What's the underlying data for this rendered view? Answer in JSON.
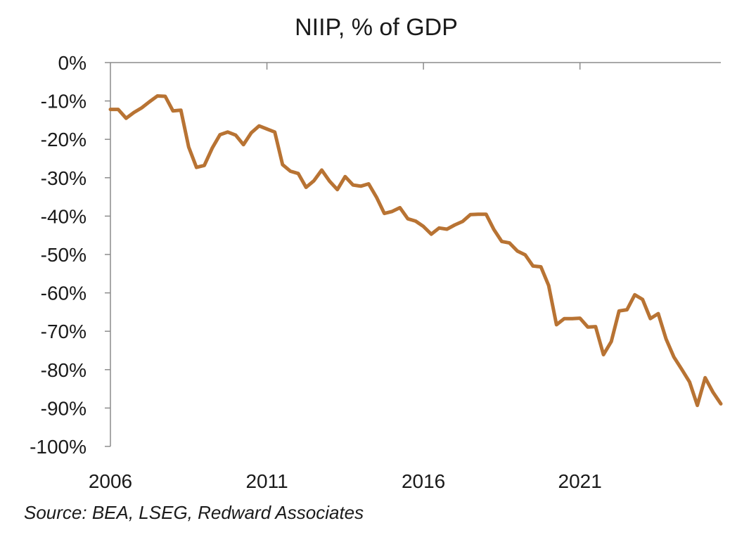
{
  "chart_data": {
    "type": "line",
    "title": "NIIP, % of GDP",
    "xlabel": "",
    "ylabel": "",
    "xlim": [
      2006,
      2025.5
    ],
    "ylim": [
      -100,
      0
    ],
    "y_ticks": [
      0,
      -10,
      -20,
      -30,
      -40,
      -50,
      -60,
      -70,
      -80,
      -90,
      -100
    ],
    "y_tick_labels": [
      "0%",
      "-10%",
      "-20%",
      "-30%",
      "-40%",
      "-50%",
      "-60%",
      "-70%",
      "-80%",
      "-90%",
      "-100%"
    ],
    "x_ticks": [
      2006,
      2011,
      2016,
      2021
    ],
    "x_tick_labels": [
      "2006",
      "2011",
      "2016",
      "2021"
    ],
    "grid": false,
    "line_color": "#B87333",
    "series": [
      {
        "name": "NIIP, % of GDP",
        "x": [
          2006.0,
          2006.25,
          2006.5,
          2006.75,
          2007.0,
          2007.25,
          2007.5,
          2007.75,
          2008.0,
          2008.25,
          2008.5,
          2008.75,
          2009.0,
          2009.25,
          2009.5,
          2009.75,
          2010.0,
          2010.25,
          2010.5,
          2010.75,
          2011.0,
          2011.25,
          2011.5,
          2011.75,
          2012.0,
          2012.25,
          2012.5,
          2012.75,
          2013.0,
          2013.25,
          2013.5,
          2013.75,
          2014.0,
          2014.25,
          2014.5,
          2014.75,
          2015.0,
          2015.25,
          2015.5,
          2015.75,
          2016.0,
          2016.25,
          2016.5,
          2016.75,
          2017.0,
          2017.25,
          2017.5,
          2017.75,
          2018.0,
          2018.25,
          2018.5,
          2018.75,
          2019.0,
          2019.25,
          2019.5,
          2019.75,
          2020.0,
          2020.25,
          2020.5,
          2020.75,
          2021.0,
          2021.25,
          2021.5,
          2021.75,
          2022.0,
          2022.25,
          2022.5,
          2022.75,
          2023.0,
          2023.25,
          2023.5,
          2023.75,
          2024.0,
          2024.25,
          2024.5,
          2024.75,
          2025.0,
          2025.25,
          2025.5
        ],
        "values": [
          -12.2,
          -12.2,
          -14.5,
          -13.0,
          -11.8,
          -10.2,
          -8.7,
          -8.8,
          -12.6,
          -12.4,
          -22.0,
          -27.3,
          -26.8,
          -22.3,
          -18.8,
          -18.1,
          -18.9,
          -21.4,
          -18.3,
          -16.5,
          -17.3,
          -18.1,
          -26.6,
          -28.3,
          -28.9,
          -32.5,
          -30.8,
          -28.0,
          -30.9,
          -33.1,
          -29.7,
          -31.9,
          -32.2,
          -31.6,
          -35.1,
          -39.3,
          -38.8,
          -37.8,
          -40.7,
          -41.3,
          -42.7,
          -44.7,
          -43.1,
          -43.4,
          -42.3,
          -41.4,
          -39.6,
          -39.5,
          -39.5,
          -43.5,
          -46.6,
          -47.0,
          -49.1,
          -50.1,
          -53.0,
          -53.2,
          -58.1,
          -68.3,
          -66.7,
          -66.7,
          -66.6,
          -68.9,
          -68.8,
          -76.1,
          -72.7,
          -64.7,
          -64.4,
          -60.5,
          -61.7,
          -66.7,
          -65.4,
          -72.0,
          -76.7,
          -79.9,
          -83.2,
          -89.3,
          -82.1,
          -85.9,
          -88.9
        ]
      }
    ]
  },
  "source": "Source: BEA, LSEG, Redward Associates"
}
